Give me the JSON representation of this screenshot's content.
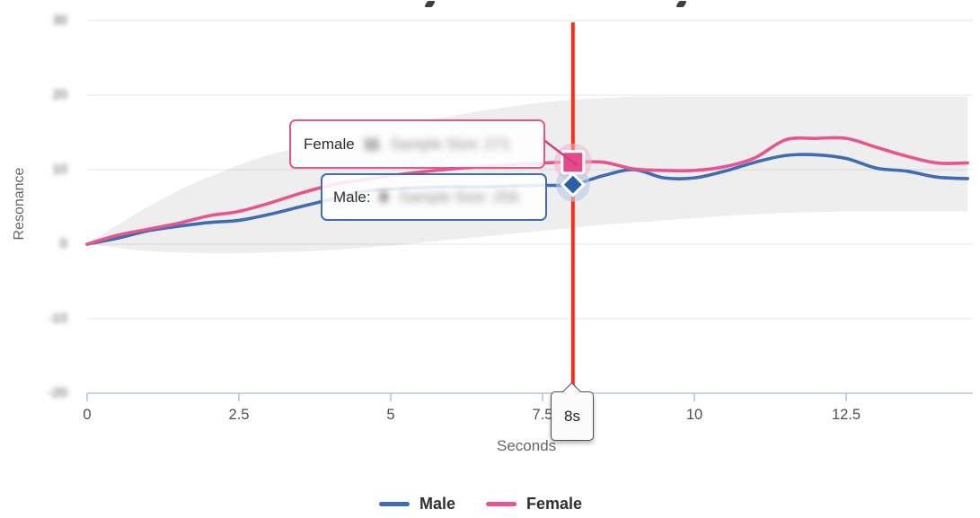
{
  "chart": {
    "y_axis": {
      "title": "Resonance",
      "ticks": [
        {
          "label": "30",
          "blurred": true
        },
        {
          "label": "20",
          "blurred": true
        },
        {
          "label": "10",
          "blurred": true
        },
        {
          "label": "0",
          "blurred": true
        },
        {
          "label": "-10",
          "blurred": true
        },
        {
          "label": "-20",
          "blurred": true
        }
      ]
    },
    "x_axis": {
      "title": "Seconds",
      "ticks": [
        {
          "label": "0"
        },
        {
          "label": "2.5"
        },
        {
          "label": "5"
        },
        {
          "label": "7.5"
        },
        {
          "label": "10"
        },
        {
          "label": "12.5"
        }
      ]
    },
    "crosshair": {
      "label": "8s",
      "color": "#fb2d16"
    },
    "tooltips": {
      "female": {
        "label": "Female",
        "value": "11",
        "sample": "Sample Size: 271",
        "color": "#e8558e"
      },
      "male": {
        "label": "Male:",
        "value": "8",
        "sample": "Sample Size: 256",
        "color": "#3d6db3"
      }
    },
    "legend": [
      {
        "label": "Male",
        "color": "#3d6db3"
      },
      {
        "label": "Female",
        "color": "#e8558e"
      }
    ]
  },
  "chart_data": {
    "type": "line",
    "title": "",
    "xlabel": "Seconds",
    "ylabel": "Resonance",
    "xlim": [
      0,
      14.6
    ],
    "ylim": [
      -20,
      30
    ],
    "x_ticks": [
      0,
      2.5,
      5,
      7.5,
      10,
      12.5
    ],
    "y_ticks": [
      30,
      20,
      10,
      0,
      -10,
      -20
    ],
    "grid": true,
    "legend_position": "bottom",
    "x": [
      0,
      0.5,
      1,
      1.5,
      2,
      2.5,
      3,
      3.5,
      4,
      4.5,
      5,
      5.5,
      6,
      6.5,
      7,
      7.5,
      8,
      8.5,
      9,
      9.5,
      10,
      10.5,
      11,
      11.5,
      12,
      12.5,
      13,
      13.5,
      14,
      14.5
    ],
    "series": [
      {
        "name": "Male",
        "color": "#3d6db3",
        "values": [
          0,
          0.8,
          1.8,
          2.4,
          2.9,
          3.2,
          4.0,
          5.0,
          6.0,
          7.0,
          7.4,
          7.6,
          7.7,
          7.7,
          7.8,
          7.9,
          8,
          9.2,
          10.0,
          8.9,
          8.9,
          9.8,
          11.0,
          11.9,
          12.0,
          11.5,
          10.2,
          9.8,
          9.0,
          8.8
        ]
      },
      {
        "name": "Female",
        "color": "#e8558e",
        "values": [
          0,
          1.2,
          2.0,
          2.8,
          3.8,
          4.4,
          5.5,
          6.8,
          7.9,
          8.6,
          9.2,
          9.7,
          10.1,
          10.4,
          10.7,
          10.9,
          11,
          11.0,
          10.1,
          9.9,
          9.9,
          10.4,
          11.6,
          14.0,
          14.2,
          14.2,
          13.0,
          11.8,
          10.9,
          10.9
        ]
      }
    ],
    "confidence_band": {
      "upper": [
        0,
        2.6,
        5.0,
        7.2,
        9.0,
        10.6,
        12.0,
        13.0,
        13.9,
        14.8,
        15.6,
        16.4,
        17.2,
        17.9,
        18.5,
        19.0,
        19.4,
        19.6,
        19.8,
        19.8,
        19.8,
        19.8,
        19.8,
        19.8,
        19.8,
        19.8,
        19.8,
        19.8,
        19.8,
        19.8
      ],
      "lower": [
        0,
        -0.5,
        -0.9,
        -1.1,
        -1.2,
        -1.2,
        -1.1,
        -1.0,
        -0.8,
        -0.5,
        -0.2,
        0.2,
        0.6,
        1.0,
        1.4,
        1.8,
        2.2,
        2.6,
        2.9,
        3.2,
        3.5,
        3.8,
        4.0,
        4.2,
        4.3,
        4.4,
        4.4,
        4.4,
        4.4,
        4.4
      ]
    },
    "crosshair_x": 8,
    "highlight": {
      "x": 8,
      "Male": 8,
      "Female": 11
    }
  }
}
